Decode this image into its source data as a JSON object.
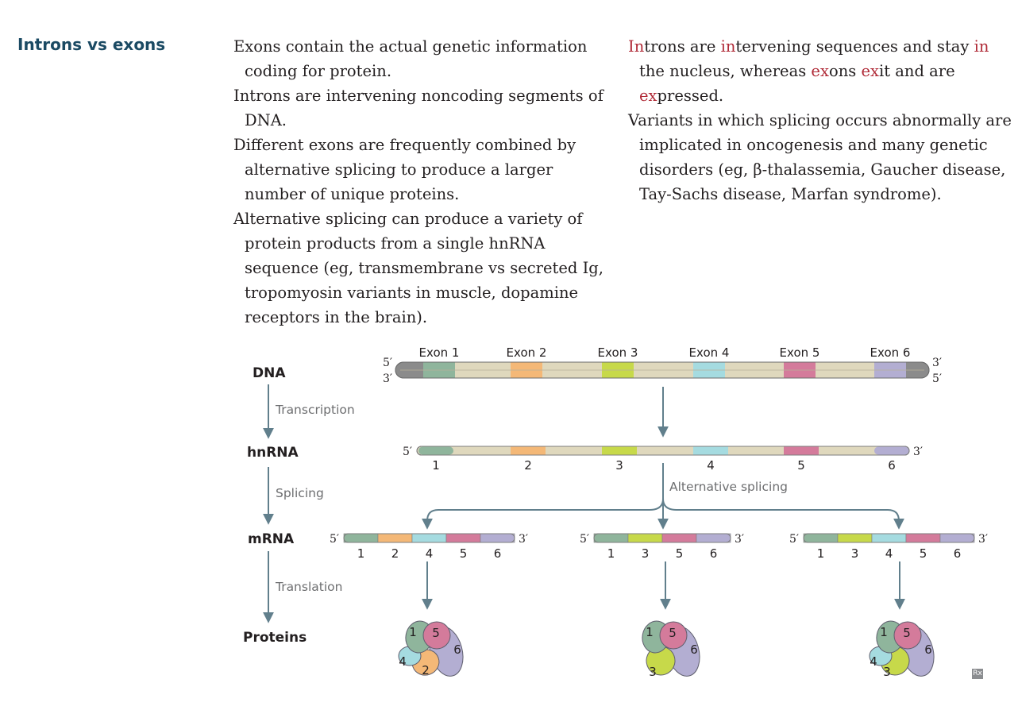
{
  "heading": "Introns vs exons",
  "left_column": [
    "Exons contain the actual genetic information coding for protein.",
    "Introns are intervening noncoding segments of DNA.",
    "Different exons are frequently combined by alternative splicing to produce a larger number of unique proteins.",
    "Alternative splicing can produce a variety of protein products from a single hnRNA sequence (eg, transmembrane vs secreted Ig, tropomyosin variants in muscle, dopamine receptors in the brain)."
  ],
  "right_column": {
    "mnemonic_parts": [
      {
        "t": "In",
        "hl": true
      },
      {
        "t": "trons are ",
        "hl": false
      },
      {
        "t": "in",
        "hl": true
      },
      {
        "t": "tervening sequences and stay ",
        "hl": false
      },
      {
        "t": "in",
        "hl": true
      },
      {
        "t": " the nucleus, whereas ",
        "hl": false
      },
      {
        "t": "ex",
        "hl": true
      },
      {
        "t": "ons ",
        "hl": false
      },
      {
        "t": "ex",
        "hl": true
      },
      {
        "t": "it and are ",
        "hl": false
      },
      {
        "t": "ex",
        "hl": true
      },
      {
        "t": "pressed.",
        "hl": false
      }
    ],
    "variants_text": "Variants in which splicing occurs abnormally are implicated in oncogenesis and many genetic disorders (eg, β-thalassemia, Gaucher disease, Tay-Sachs disease, Marfan syndrome)."
  },
  "diagram": {
    "stages": {
      "dna": "DNA",
      "hnrna": "hnRNA",
      "mrna": "mRNA",
      "proteins": "Proteins"
    },
    "processes": {
      "transcription": "Transcription",
      "splicing": "Splicing",
      "translation": "Translation",
      "alternative_splicing": "Alternative splicing"
    },
    "ends": {
      "five": "5′",
      "three": "3′"
    },
    "exon_labels": [
      "Exon 1",
      "Exon 2",
      "Exon 3",
      "Exon 4",
      "Exon 5",
      "Exon 6"
    ],
    "exon_numbers": [
      "1",
      "2",
      "3",
      "4",
      "5",
      "6"
    ],
    "exon_colors": {
      "1": "#8fb59c",
      "2": "#f4b877",
      "3": "#c7d94a",
      "4": "#a5dbe0",
      "5": "#d47b9b",
      "6": "#b3aed2"
    },
    "intron_color": "#dfd8bd",
    "cap_color": "#8b8b8b",
    "mrna_variants": [
      {
        "exons": [
          "1",
          "2",
          "4",
          "5",
          "6"
        ]
      },
      {
        "exons": [
          "1",
          "3",
          "5",
          "6"
        ]
      },
      {
        "exons": [
          "1",
          "3",
          "4",
          "5",
          "6"
        ]
      }
    ],
    "proteins": [
      {
        "subunits": [
          "1",
          "5",
          "6",
          "4",
          "2"
        ]
      },
      {
        "subunits": [
          "1",
          "5",
          "6",
          "3"
        ]
      },
      {
        "subunits": [
          "1",
          "5",
          "6",
          "4",
          "3"
        ]
      }
    ]
  },
  "badge": "Rx"
}
